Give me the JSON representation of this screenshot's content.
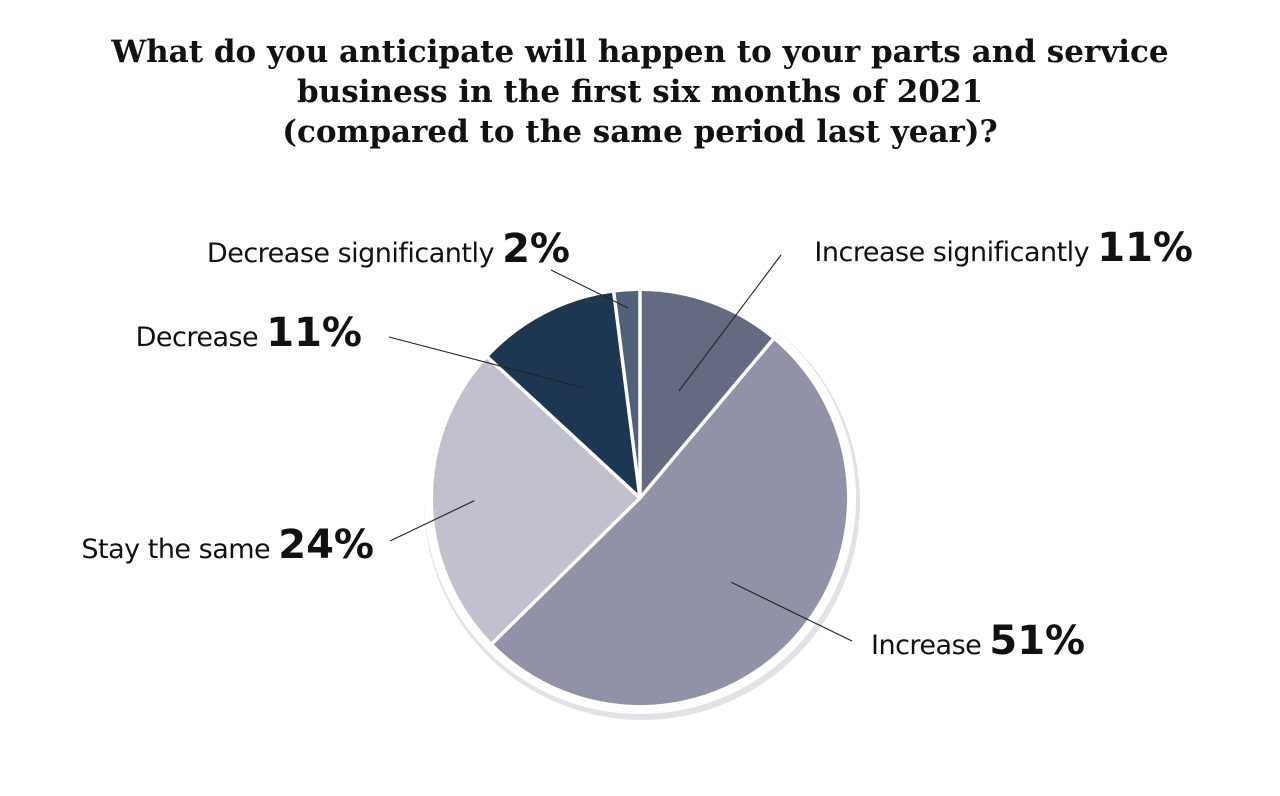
{
  "chart_data": {
    "type": "pie",
    "title": [
      "What do you anticipate will happen to your parts and service",
      "business in the first six months of 2021",
      "(compared to the same period last year)?"
    ],
    "slices": [
      {
        "label": "Increase significantly",
        "value": 11,
        "value_label": "11%",
        "color": "#636a81"
      },
      {
        "label": "Increase",
        "value": 51,
        "value_label": "51%",
        "color": "#9093a7"
      },
      {
        "label": "Stay the same",
        "value": 24,
        "value_label": "24%",
        "color": "#c0c1cc"
      },
      {
        "label": "Decrease",
        "value": 11,
        "value_label": "11%",
        "color": "#1d3752"
      },
      {
        "label": "Decrease significantly",
        "value": 2,
        "value_label": "2%",
        "color": "#53607a"
      }
    ],
    "start": "12 o'clock",
    "direction": "clockwise",
    "legend": "none"
  }
}
